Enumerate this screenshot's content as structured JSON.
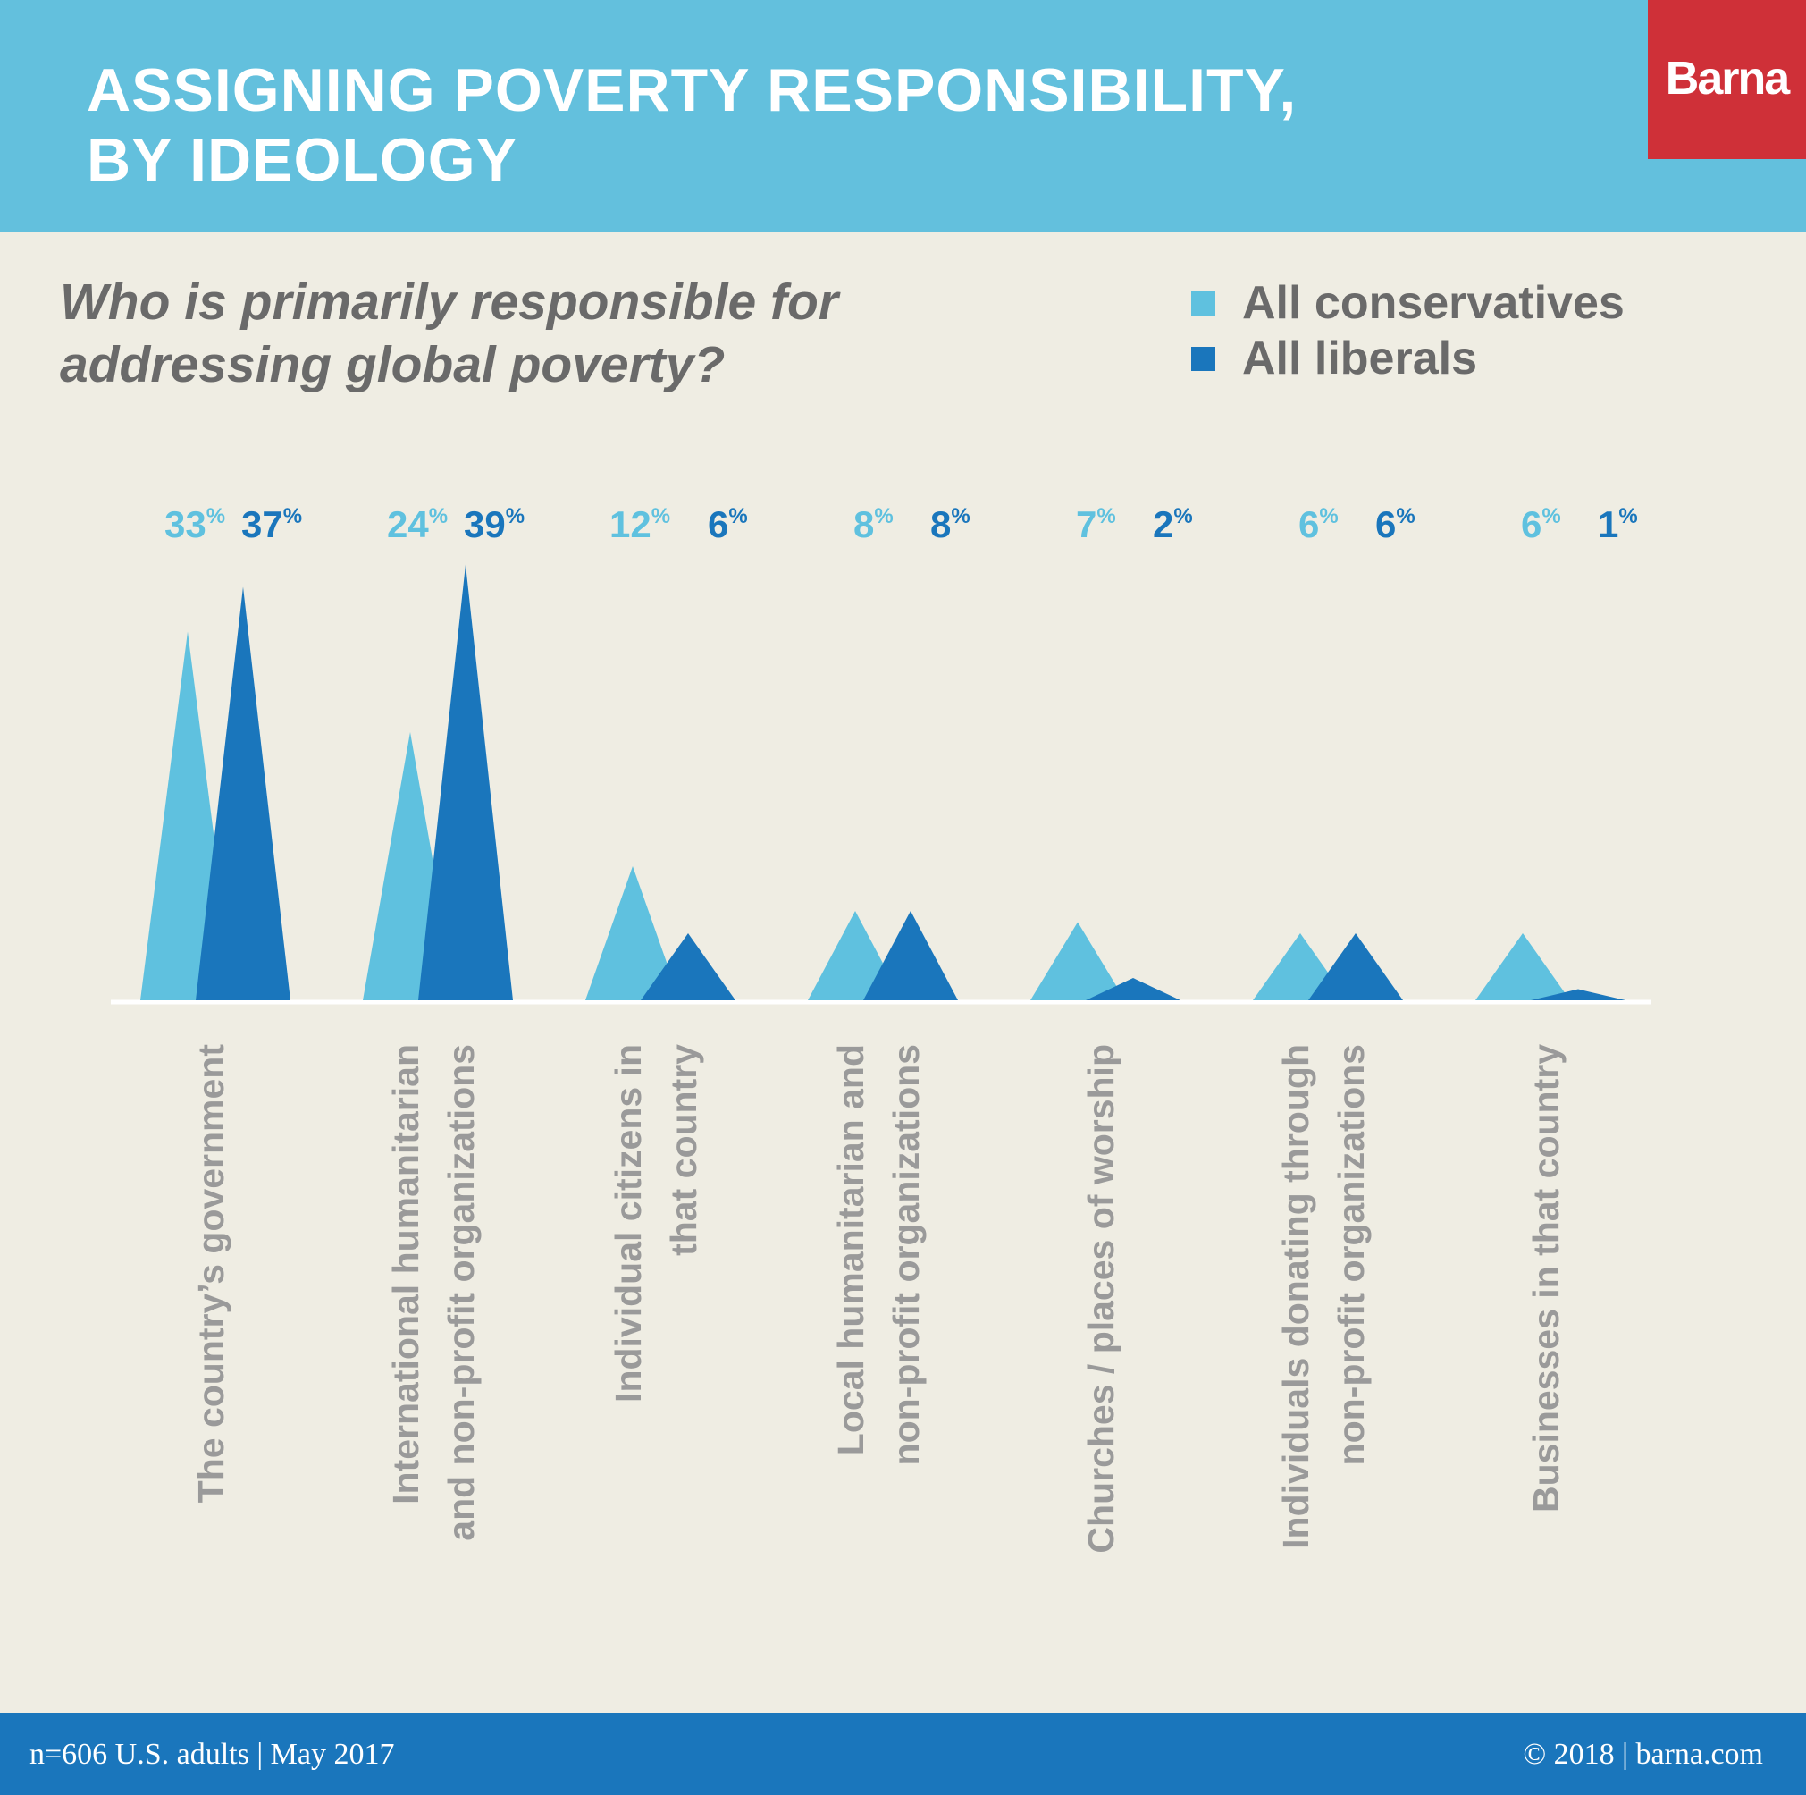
{
  "header": {
    "title_lines": [
      "ASSIGNING POVERTY RESPONSIBILITY,",
      "BY IDEOLOGY"
    ],
    "logo": "Barna"
  },
  "colors": {
    "header_bg": "#63c0dd",
    "logo_bg": "#cf3038",
    "conservatives": "#5fc1df",
    "liberals": "#1a76bc",
    "background": "#efede3",
    "footer_bg": "#1a76bc"
  },
  "chart_data": {
    "type": "area",
    "title": "ASSIGNING POVERTY RESPONSIBILITY, BY IDEOLOGY",
    "subtitle_lines": [
      "Who is primarily responsible for",
      "addressing global poverty?"
    ],
    "legend_placement": "top-right",
    "value_suffix": "%",
    "ylim": [
      0,
      40
    ],
    "categories": [
      [
        "The country’s government"
      ],
      [
        "International humanitarian",
        "and non-profit organizations"
      ],
      [
        "Individual citizens in",
        "that country"
      ],
      [
        "Local humanitarian and",
        "non-profit organizations"
      ],
      [
        "Churches / places of worship"
      ],
      [
        "Individuals donating through",
        "non-profit organizations"
      ],
      [
        "Businesses in that country"
      ]
    ],
    "series": [
      {
        "name": "All conservatives",
        "values": [
          33,
          24,
          12,
          8,
          7,
          6,
          6
        ]
      },
      {
        "name": "All liberals",
        "values": [
          37,
          39,
          6,
          8,
          2,
          6,
          1
        ]
      }
    ]
  },
  "footer": {
    "left": "n=606 U.S. adults | May 2017",
    "right": "© 2018 | barna.com"
  }
}
